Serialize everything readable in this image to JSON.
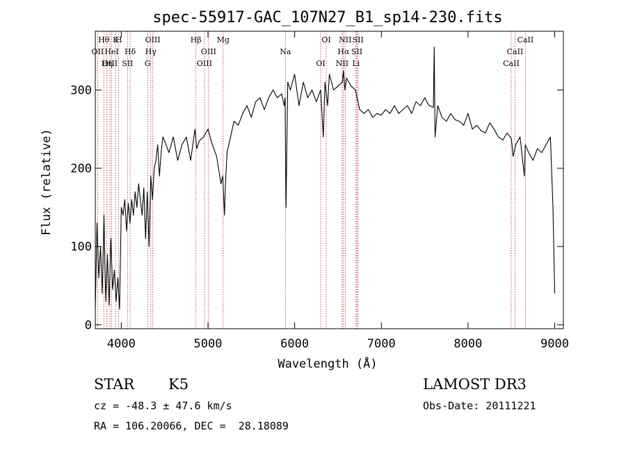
{
  "chart_data": {
    "type": "line",
    "title": "spec-55917-GAC_107N27_B1_sp14-230.fits",
    "xlabel": "Wavelength (Å)",
    "ylabel": "Flux (relative)",
    "xlim": [
      3700,
      9100
    ],
    "ylim": [
      -5,
      375
    ],
    "xticks": [
      4000,
      5000,
      6000,
      7000,
      8000,
      9000
    ],
    "yticks": [
      0,
      100,
      200,
      300
    ],
    "grid": false,
    "series": [
      {
        "x": [
          3700,
          3720,
          3740,
          3760,
          3780,
          3800,
          3820,
          3840,
          3860,
          3880,
          3900,
          3920,
          3940,
          3960,
          3980,
          4000,
          4020,
          4040,
          4060,
          4080,
          4100,
          4120,
          4140,
          4160,
          4180,
          4200,
          4220,
          4240,
          4260,
          4280,
          4300,
          4320,
          4340,
          4360,
          4380,
          4400,
          4420,
          4440,
          4460,
          4480,
          4500,
          4550,
          4600,
          4650,
          4700,
          4750,
          4800,
          4850,
          4870,
          4900,
          4950,
          5000,
          5050,
          5100,
          5150,
          5170,
          5190,
          5200,
          5220,
          5250,
          5300,
          5350,
          5400,
          5450,
          5500,
          5550,
          5600,
          5650,
          5700,
          5750,
          5800,
          5850,
          5880,
          5890,
          5900,
          5920,
          5950,
          6000,
          6050,
          6100,
          6150,
          6200,
          6250,
          6300,
          6330,
          6350,
          6380,
          6400,
          6450,
          6500,
          6550,
          6563,
          6580,
          6600,
          6650,
          6700,
          6750,
          6800,
          6850,
          6900,
          6950,
          7000,
          7050,
          7100,
          7150,
          7200,
          7250,
          7300,
          7350,
          7400,
          7450,
          7500,
          7550,
          7600,
          7610,
          7620,
          7650,
          7700,
          7750,
          7800,
          7850,
          7900,
          7950,
          8000,
          8050,
          8100,
          8150,
          8200,
          8250,
          8300,
          8350,
          8400,
          8450,
          8500,
          8520,
          8550,
          8600,
          8650,
          8660,
          8700,
          8750,
          8800,
          8850,
          8900,
          8950,
          8980,
          9000
        ],
        "y": [
          20,
          130,
          60,
          100,
          40,
          140,
          30,
          90,
          25,
          110,
          45,
          70,
          30,
          60,
          20,
          150,
          140,
          160,
          120,
          155,
          130,
          160,
          140,
          170,
          150,
          180,
          160,
          140,
          175,
          110,
          170,
          100,
          190,
          160,
          200,
          210,
          230,
          190,
          220,
          240,
          235,
          220,
          240,
          210,
          230,
          240,
          210,
          250,
          225,
          235,
          240,
          250,
          230,
          215,
          180,
          190,
          140,
          175,
          220,
          235,
          260,
          255,
          270,
          280,
          265,
          285,
          290,
          275,
          290,
          300,
          290,
          295,
          280,
          290,
          150,
          310,
          300,
          320,
          280,
          310,
          290,
          300,
          285,
          300,
          240,
          310,
          280,
          320,
          300,
          305,
          310,
          325,
          300,
          315,
          305,
          300,
          275,
          270,
          275,
          265,
          270,
          268,
          275,
          270,
          280,
          270,
          275,
          280,
          270,
          285,
          280,
          290,
          280,
          278,
          355,
          240,
          280,
          265,
          260,
          270,
          262,
          260,
          255,
          270,
          250,
          255,
          248,
          245,
          258,
          250,
          240,
          236,
          245,
          238,
          215,
          230,
          240,
          190,
          230,
          220,
          210,
          225,
          220,
          230,
          240,
          150,
          40
        ]
      }
    ],
    "lines": [
      {
        "label": "Hθ",
        "x": 3798
      },
      {
        "label": "OII",
        "x": 3727
      },
      {
        "label": "OIII",
        "x": 3869
      },
      {
        "label": "K",
        "x": 3934
      },
      {
        "label": "HeI",
        "x": 3889
      },
      {
        "label": "Hη",
        "x": 3835
      },
      {
        "label": "H",
        "x": 3970
      },
      {
        "label": "Hδ",
        "x": 4102
      },
      {
        "label": "SII",
        "x": 4072
      },
      {
        "label": "OIII",
        "x": 4363
      },
      {
        "label": "Hγ",
        "x": 4340
      },
      {
        "label": "G",
        "x": 4304
      },
      {
        "label": "Hβ",
        "x": 4861
      },
      {
        "label": "OIII",
        "x": 5007
      },
      {
        "label": "OIII",
        "x": 4959
      },
      {
        "label": "Mg",
        "x": 5175
      },
      {
        "label": "Na",
        "x": 5893
      },
      {
        "label": "OI",
        "x": 6300
      },
      {
        "label": "OI",
        "x": 6364
      },
      {
        "label": "Hα",
        "x": 6563
      },
      {
        "label": "NII",
        "x": 6548
      },
      {
        "label": "NII",
        "x": 6583
      },
      {
        "label": "SII",
        "x": 6717
      },
      {
        "label": "Li",
        "x": 6708
      },
      {
        "label": "SII",
        "x": 6731
      },
      {
        "label": "CaII",
        "x": 8542
      },
      {
        "label": "CaII",
        "x": 8498
      },
      {
        "label": "CaII",
        "x": 8662
      }
    ]
  },
  "info": {
    "object_class": "STAR",
    "subclass": "K5",
    "survey": "LAMOST DR3",
    "cz_line": "cz = -48.3 ± 47.6 km/s",
    "obs_date_line": "Obs-Date: 20111221",
    "radec_line": "RA = 106.20066, DEC =  28.18089"
  }
}
